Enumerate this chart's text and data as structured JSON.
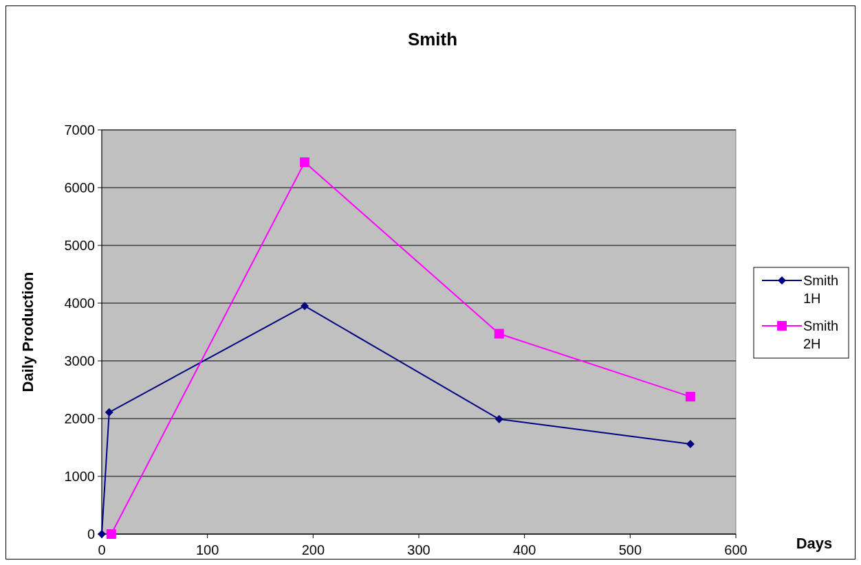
{
  "chart_data": {
    "type": "line",
    "title": "Smith",
    "xlabel": "Days",
    "ylabel": "Daily Production",
    "xlim": [
      0,
      600
    ],
    "xticks": [
      0,
      100,
      200,
      300,
      400,
      500,
      600
    ],
    "ylim": [
      0,
      7000
    ],
    "yticks": [
      0,
      1000,
      2000,
      3000,
      4000,
      5000,
      6000,
      7000
    ],
    "grid": "y",
    "legend": "right",
    "series": [
      {
        "name": "Smith 1H",
        "color": "#000080",
        "marker": "diamond",
        "x": [
          0,
          7,
          192,
          376,
          557
        ],
        "values": [
          0,
          2110,
          3950,
          1990,
          1560
        ]
      },
      {
        "name": "Smith 2H",
        "color": "#ff00ff",
        "marker": "square",
        "x": [
          9,
          192,
          376,
          557
        ],
        "values": [
          0,
          6440,
          3470,
          2380
        ]
      }
    ]
  }
}
